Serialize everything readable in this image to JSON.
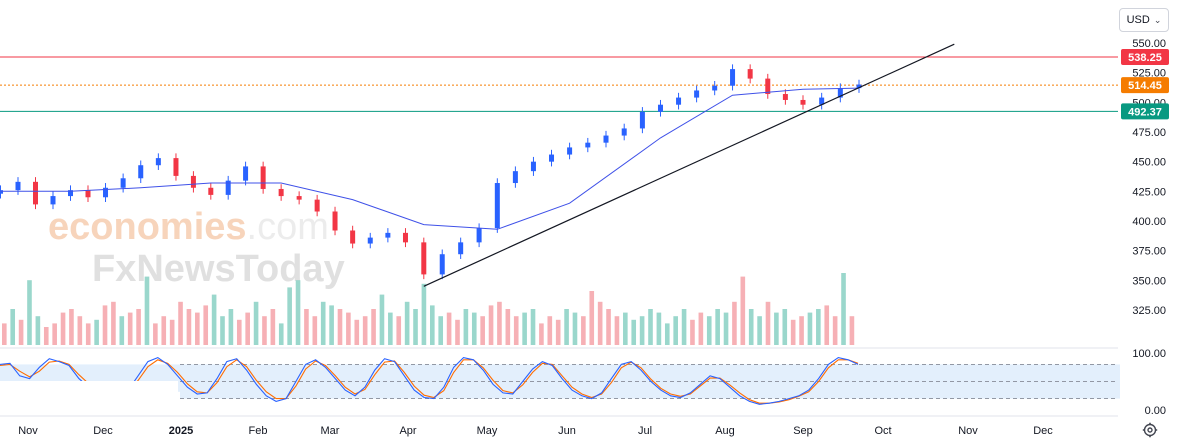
{
  "currency": {
    "label": "USD"
  },
  "watermark": {
    "line1_main": "economies",
    "line1_suffix": ".com",
    "line2": "FxNewsToday"
  },
  "chart_data": {
    "type": "candlestick",
    "y_axis": {
      "range": [
        318,
        562
      ],
      "ticks": [
        "550.00",
        "525.00",
        "500.00",
        "475.00",
        "450.00",
        "425.00",
        "400.00",
        "375.00",
        "350.00",
        "325.00"
      ]
    },
    "x_axis": {
      "ticks": [
        "Nov",
        "Dec",
        "2025",
        "Feb",
        "Mar",
        "Apr",
        "May",
        "Jun",
        "Jul",
        "Aug",
        "Sep",
        "Oct",
        "Nov",
        "Dec"
      ]
    },
    "levels": [
      {
        "label": "538.25",
        "value": 538.25,
        "color": "#f23645",
        "style": "solid"
      },
      {
        "label": "514.45",
        "value": 514.45,
        "color": "#f57c00",
        "style": "dotted"
      },
      {
        "label": "492.37",
        "value": 492.37,
        "color": "#089981",
        "style": "solid"
      }
    ],
    "trendline": {
      "start": [
        0.0,
        345
      ],
      "end": [
        1.0,
        549
      ],
      "start_date": "2025-04-07",
      "end_date": "2025-10-27"
    },
    "series": [
      {
        "name": "price",
        "close_points": [
          [
            "2024-10-21",
            426
          ],
          [
            "2024-10-28",
            433
          ],
          [
            "2024-11-04",
            414
          ],
          [
            "2024-11-11",
            421
          ],
          [
            "2024-11-18",
            426
          ],
          [
            "2024-11-25",
            420
          ],
          [
            "2024-12-02",
            428
          ],
          [
            "2024-12-09",
            436
          ],
          [
            "2024-12-16",
            447
          ],
          [
            "2024-12-23",
            453
          ],
          [
            "2024-12-30",
            438
          ],
          [
            "2025-01-06",
            428
          ],
          [
            "2025-01-13",
            422
          ],
          [
            "2025-01-20",
            434
          ],
          [
            "2025-01-27",
            446
          ],
          [
            "2025-02-03",
            427
          ],
          [
            "2025-02-10",
            421
          ],
          [
            "2025-02-17",
            418
          ],
          [
            "2025-02-24",
            408
          ],
          [
            "2025-03-03",
            392
          ],
          [
            "2025-03-10",
            381
          ],
          [
            "2025-03-17",
            386
          ],
          [
            "2025-03-24",
            390
          ],
          [
            "2025-03-31",
            382
          ],
          [
            "2025-04-07",
            355
          ],
          [
            "2025-04-14",
            372
          ],
          [
            "2025-04-21",
            382
          ],
          [
            "2025-04-28",
            394
          ],
          [
            "2025-05-05",
            432
          ],
          [
            "2025-05-12",
            442
          ],
          [
            "2025-05-19",
            450
          ],
          [
            "2025-05-26",
            456
          ],
          [
            "2025-06-02",
            462
          ],
          [
            "2025-06-09",
            466
          ],
          [
            "2025-06-16",
            472
          ],
          [
            "2025-06-23",
            478
          ],
          [
            "2025-06-30",
            492
          ],
          [
            "2025-07-07",
            498
          ],
          [
            "2025-07-14",
            504
          ],
          [
            "2025-07-21",
            510
          ],
          [
            "2025-07-28",
            514
          ],
          [
            "2025-08-04",
            528
          ],
          [
            "2025-08-11",
            520
          ],
          [
            "2025-08-18",
            507
          ],
          [
            "2025-08-25",
            502
          ],
          [
            "2025-09-01",
            498
          ],
          [
            "2025-09-08",
            504
          ],
          [
            "2025-09-15",
            512
          ],
          [
            "2025-09-22",
            515
          ]
        ]
      },
      {
        "name": "moving-average",
        "close_points": [
          [
            "2024-10-21",
            425
          ],
          [
            "2024-11-18",
            425
          ],
          [
            "2024-12-16",
            428
          ],
          [
            "2025-01-13",
            432
          ],
          [
            "2025-02-10",
            432
          ],
          [
            "2025-03-10",
            418
          ],
          [
            "2025-04-07",
            397
          ],
          [
            "2025-05-05",
            393
          ],
          [
            "2025-06-02",
            415
          ],
          [
            "2025-07-07",
            470
          ],
          [
            "2025-08-04",
            506
          ],
          [
            "2025-09-01",
            511
          ],
          [
            "2025-09-22",
            512
          ]
        ]
      },
      {
        "name": "volume",
        "values": [
          0.3,
          0.5,
          0.35,
          0.9,
          0.4,
          0.25,
          0.3,
          0.45,
          0.5,
          0.4,
          0.3,
          0.35,
          0.55,
          0.6,
          0.4,
          0.45,
          0.5,
          0.95,
          0.3,
          0.4,
          0.35,
          0.6,
          0.5,
          0.45,
          0.55,
          0.7,
          0.4,
          0.5,
          0.35,
          0.45,
          0.6,
          0.4,
          0.5,
          0.3,
          0.8,
          0.9,
          0.5,
          0.4,
          0.6,
          0.55,
          0.5,
          0.45,
          0.35,
          0.4,
          0.5,
          0.7,
          0.45,
          0.4,
          0.6,
          0.5,
          0.85,
          0.55,
          0.4,
          0.45,
          0.35,
          0.5,
          0.45,
          0.4,
          0.55,
          0.6,
          0.5,
          0.4,
          0.45,
          0.5,
          0.3,
          0.4,
          0.35,
          0.5,
          0.45,
          0.4,
          0.75,
          0.6,
          0.5,
          0.4,
          0.45,
          0.35,
          0.4,
          0.5,
          0.45,
          0.3,
          0.4,
          0.5,
          0.35,
          0.45,
          0.4,
          0.5,
          0.45,
          0.6,
          0.95,
          0.5,
          0.4,
          0.6,
          0.45,
          0.5,
          0.35,
          0.4,
          0.45,
          0.5,
          0.55,
          0.4,
          1.0,
          0.4
        ]
      },
      {
        "name": "stochastic-k",
        "range": [
          0,
          100
        ],
        "ticks": [
          "100.00",
          "0.00"
        ],
        "overbought": 80,
        "oversold": 20,
        "values": [
          80,
          82,
          60,
          55,
          75,
          90,
          85,
          78,
          55,
          40,
          30,
          20,
          18,
          35,
          60,
          85,
          92,
          80,
          60,
          40,
          28,
          30,
          55,
          85,
          90,
          70,
          45,
          25,
          15,
          20,
          50,
          80,
          88,
          75,
          55,
          35,
          25,
          40,
          70,
          90,
          85,
          60,
          35,
          22,
          20,
          40,
          75,
          92,
          88,
          70,
          45,
          30,
          28,
          50,
          72,
          85,
          78,
          55,
          35,
          25,
          20,
          30,
          55,
          80,
          85,
          70,
          50,
          35,
          25,
          22,
          30,
          45,
          60,
          55,
          40,
          25,
          15,
          10,
          12,
          15,
          20,
          25,
          35,
          55,
          80,
          92,
          88,
          80
        ]
      },
      {
        "name": "stochastic-d",
        "range": [
          0,
          100
        ],
        "values": [
          78,
          80,
          68,
          58,
          68,
          84,
          86,
          80,
          62,
          46,
          34,
          24,
          20,
          30,
          52,
          76,
          88,
          82,
          66,
          46,
          32,
          30,
          48,
          76,
          88,
          76,
          52,
          32,
          20,
          20,
          42,
          72,
          86,
          78,
          60,
          40,
          28,
          36,
          62,
          84,
          86,
          66,
          42,
          26,
          22,
          34,
          66,
          88,
          88,
          74,
          52,
          34,
          30,
          44,
          66,
          82,
          80,
          60,
          40,
          28,
          22,
          28,
          48,
          74,
          84,
          74,
          54,
          38,
          28,
          24,
          28,
          42,
          56,
          56,
          44,
          30,
          18,
          12,
          12,
          14,
          18,
          24,
          32,
          50,
          74,
          88,
          88,
          82
        ]
      }
    ]
  }
}
